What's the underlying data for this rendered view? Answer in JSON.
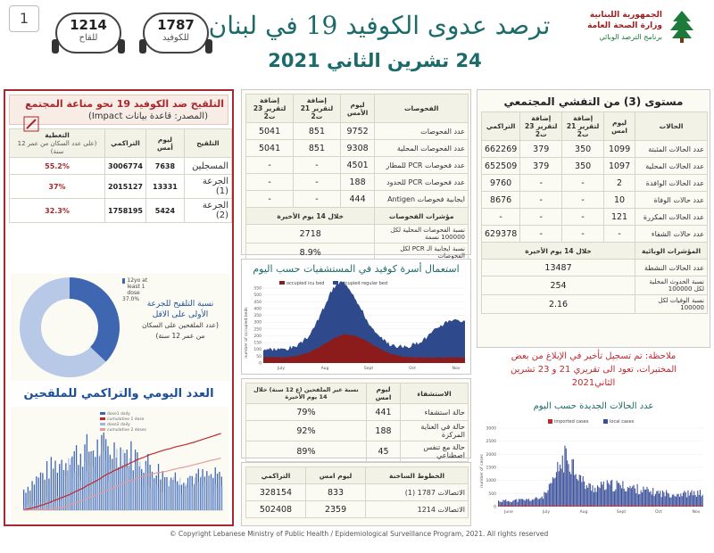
{
  "page_number": "1",
  "header": {
    "title": "ترصد عدوى الكوفيد 19 في لبنان",
    "date": "24 تشرين الثاني 2021",
    "badge_vaccine": {
      "value": "1214",
      "label": "للقاح"
    },
    "badge_covid": {
      "value": "1787",
      "label": "للكوفيد"
    },
    "logo": {
      "line1": "الجمهورية اللبنانية",
      "line2": "وزارة الصحة العامة",
      "line3": "برنامج الترصد الوبائي"
    }
  },
  "vaccination_panel": {
    "title": "التلقيح ضد الكوفيد 19  نحو مناعة المجتمع",
    "source": "(المصدر: قاعدة بيانات Impact)",
    "headers": [
      "التلقيح",
      "ليوم أمس",
      "التراكمي",
      "التغطية",
      "(على عدد السكان من عمر 12 سنة)"
    ],
    "rows": [
      {
        "label": "المسجلين",
        "yesterday": "7638",
        "cumulative": "3006774",
        "coverage": "55.2%"
      },
      {
        "label": "الجرعة (1)",
        "yesterday": "13331",
        "cumulative": "2015127",
        "coverage": "37%"
      },
      {
        "label": "الجرعة (2)",
        "yesterday": "5424",
        "cumulative": "1758195",
        "coverage": "32.3%"
      }
    ],
    "donut_legend": [
      "12yo at least 1 dose",
      "37.0%"
    ],
    "donut_caption": [
      "نسبة التلقيح للجرعة",
      "الأولى على الاقل",
      "(عدد الملقحين على السكان",
      "من عمر 12 سنة)"
    ],
    "daily_title": "العدد اليومي والتراكمي للملقحين",
    "daily_legend": [
      "dose1 daily",
      "cumulative 1 dose",
      "dose2 daily",
      "cumulative 2 doses"
    ]
  },
  "tests_panel": {
    "headers": [
      "الفحوصات",
      "ليوم الأمس",
      "إضافة لتقرير 21 ت2",
      "إضافة لتقرير 23 ت2"
    ],
    "rows": [
      {
        "label": "عدد الفحوصات",
        "c1": "9752",
        "c2": "851",
        "c3": "5041"
      },
      {
        "label": "عدد الفحوصات المحلية",
        "c1": "9308",
        "c2": "851",
        "c3": "5041"
      },
      {
        "label": "عدد فحوصات PCR للمطار",
        "c1": "4501",
        "c2": "-",
        "c3": "-"
      },
      {
        "label": "عدد فحوصات PCR للحدود",
        "c1": "188",
        "c2": "-",
        "c3": "-"
      },
      {
        "label": "ايجابية فحوصات Antigen",
        "c1": "444",
        "c2": "-",
        "c3": "-"
      }
    ],
    "indicators_title": "مؤشرات الفحوصات",
    "indicators_period": "خلال 14 يوم الأخيرة",
    "indicators": [
      {
        "label": "نسبة الفحوصات المحلية لكل 100000 نسمة",
        "value": "2718"
      },
      {
        "label": "نسبة ايجابية الـ PCR لكل الفحوصات",
        "value": "8.9%"
      }
    ]
  },
  "beds_chart": {
    "title": "استعمال أسرة كوفيد في المستشفيات حسب اليوم",
    "legend": [
      "occupied icu bed",
      "occupied regular bed"
    ],
    "ylabel": "number of occupied beds",
    "y_ticks": [
      "0",
      "50",
      "100",
      "150",
      "200",
      "250",
      "300",
      "350",
      "400",
      "450",
      "500",
      "550"
    ],
    "x_ticks": [
      "July",
      "Aug",
      "Sept",
      "Oct",
      "Nov"
    ],
    "colors": {
      "icu": "#8c1c1c",
      "regular": "#2f4a8c"
    }
  },
  "hospital_panel": {
    "headers": [
      "الاستشفاء",
      "ليوم امس",
      "نسبة غير الملقحين (ع 12 سنة) خلال 14 يوم الأخيرة"
    ],
    "rows": [
      {
        "label": "حالة استشفاء",
        "yesterday": "441",
        "pct": "79%"
      },
      {
        "label": "حالة في العناية المركزة",
        "yesterday": "188",
        "pct": "92%"
      },
      {
        "label": "حالة مع تنفس اصطناعي",
        "yesterday": "45",
        "pct": "89%"
      }
    ]
  },
  "hotlines_panel": {
    "headers": [
      "الخطوط الساخنة",
      "ليوم امس",
      "التراكمي"
    ],
    "rows": [
      {
        "label": "الاتصالات 1787 (1)",
        "yesterday": "833",
        "cumulative": "328154"
      },
      {
        "label": "الاتصالات 1214",
        "yesterday": "2359",
        "cumulative": "502408"
      }
    ]
  },
  "cases_panel": {
    "title": "مستوى (3) من التفشي المجتمعي",
    "headers": [
      "الحالات",
      "ليوم امس",
      "إضافة لتقرير 21 ت2",
      "إضافة لتقرير 23 ت2",
      "التراكمي"
    ],
    "rows": [
      {
        "label": "عدد الحالات المثبتة",
        "c1": "1099",
        "c2": "350",
        "c3": "379",
        "c4": "662269"
      },
      {
        "label": "عدد الحالات المحلية",
        "c1": "1097",
        "c2": "350",
        "c3": "379",
        "c4": "652509"
      },
      {
        "label": "عدد الحالات الوافدة",
        "c1": "2",
        "c2": "-",
        "c3": "-",
        "c4": "9760"
      },
      {
        "label": "عدد حالات الوفاة",
        "c1": "10",
        "c2": "-",
        "c3": "-",
        "c4": "8676"
      },
      {
        "label": "عدد الحالات المكررة",
        "c1": "121",
        "c2": "-",
        "c3": "-",
        "c4": "-"
      },
      {
        "label": "عدد حالات الشفاء",
        "c1": "-",
        "c2": "-",
        "c3": "-",
        "c4": "629378"
      }
    ],
    "indicators_title": "المؤشرات الوبائية",
    "indicators_period": "خلال 14 يوم الأخيرة",
    "indicators": [
      {
        "label": "عدد الحالات النشطة",
        "value": "13487"
      },
      {
        "label": "نسبة الحدوث المحلية لكل 100000",
        "value": "254"
      },
      {
        "label": "نسبة الوفيات لكل 100000",
        "value": "2.16"
      }
    ],
    "note": [
      "ملاحظة: تم تسجيل تأخير في الإبلاغ من بعض",
      "المختبرات، تعود الى تقريري 21 و 23 تشرين",
      "الثاني2021"
    ]
  },
  "cases_chart": {
    "title": "عدد الحالات الجديدة حسب اليوم",
    "legend": [
      "imported cases",
      "local cases"
    ],
    "ylabel": "number of cases",
    "y_ticks": [
      "0",
      "500",
      "1000",
      "1500",
      "2000",
      "2500",
      "3000"
    ],
    "x_ticks": [
      "June",
      "July",
      "Aug",
      "Sept",
      "Oct",
      "Nov"
    ],
    "colors": {
      "imported": "#c0282d",
      "local": "#3a4f9a"
    }
  },
  "copyright": "© Copyright Lebanese Ministry of Public Health / Epidemiological Surveillance Program, 2021. All rights reserved",
  "colors": {
    "accent": "#1c6b6a",
    "red": "#a8282d",
    "blue": "#1b4f9a"
  }
}
